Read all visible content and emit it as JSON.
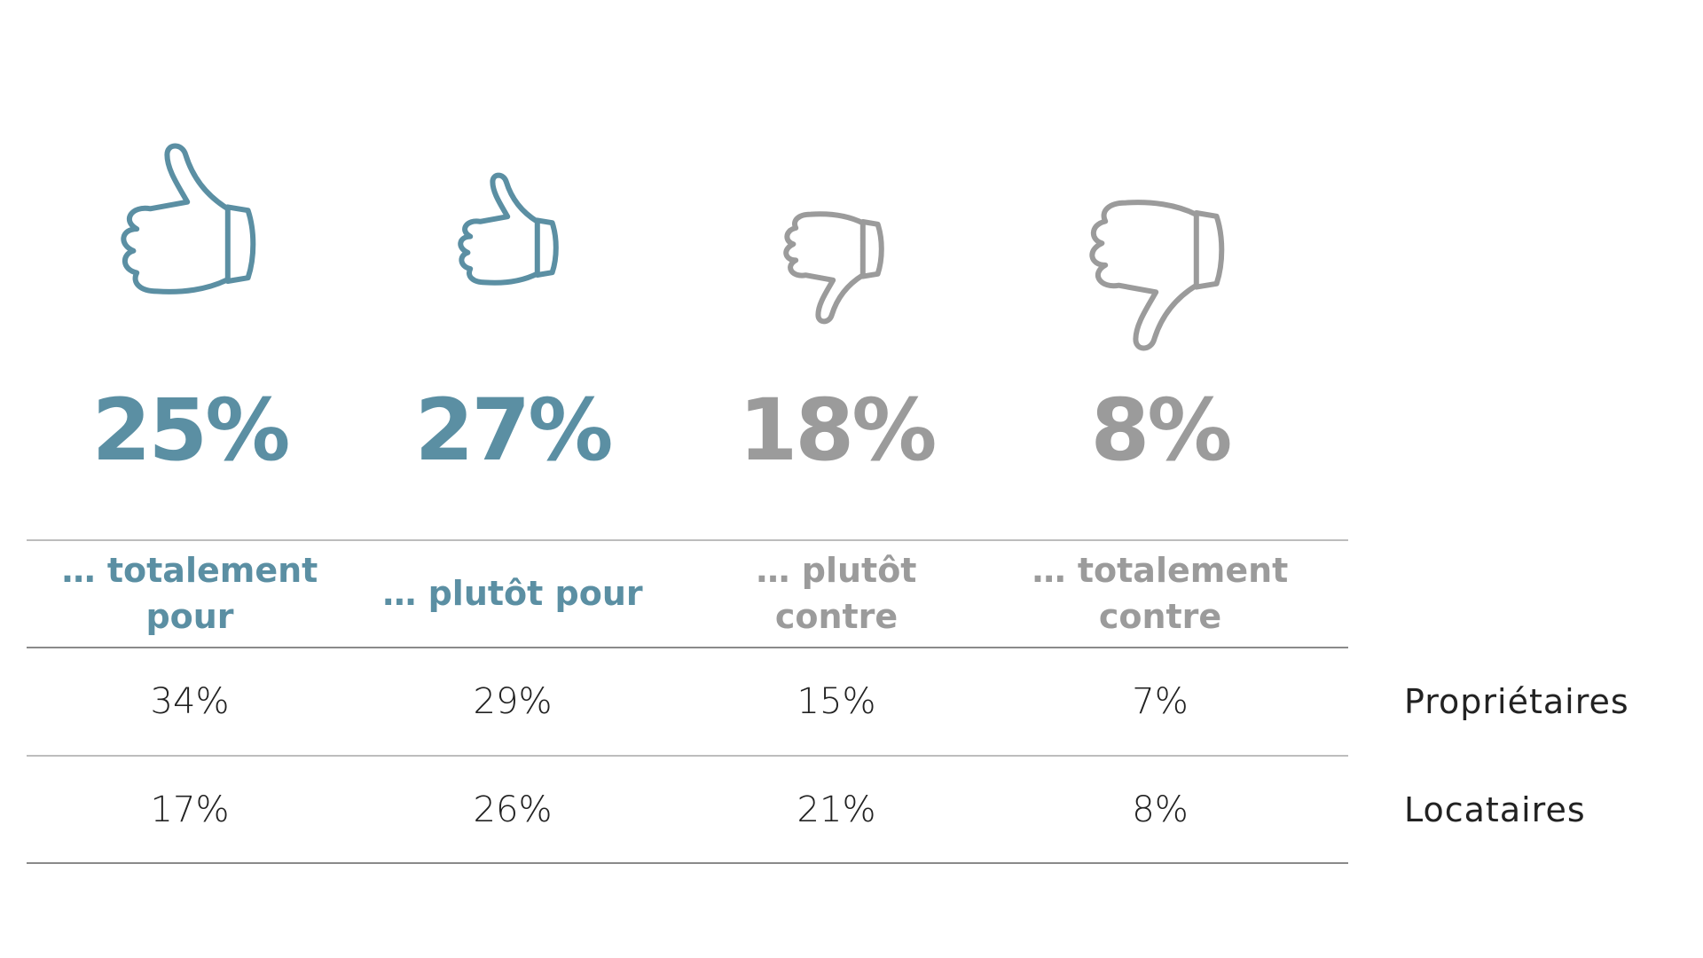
{
  "columns": [
    {
      "percent": "25%",
      "label": "… totalement pour"
    },
    {
      "percent": "27%",
      "label": "… plutôt pour"
    },
    {
      "percent": "18%",
      "label": "… plutôt contre"
    },
    {
      "percent": "8%",
      "label": "… totalement contre"
    }
  ],
  "rows": [
    {
      "label": "Propriétaires",
      "values": [
        "34%",
        "29%",
        "15%",
        "7%"
      ]
    },
    {
      "label": "Locataires",
      "values": [
        "17%",
        "26%",
        "21%",
        "8%"
      ]
    }
  ]
}
